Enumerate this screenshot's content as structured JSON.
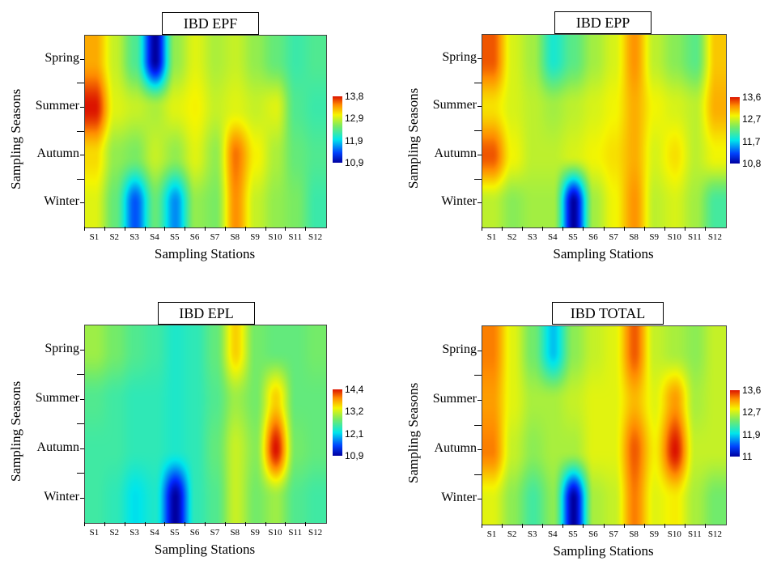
{
  "chart_data": [
    {
      "type": "heatmap",
      "title": "IBD EPF",
      "xlabel": "Sampling Stations",
      "ylabel": "Sampling Seasons",
      "categories": [
        "S1",
        "S2",
        "S3",
        "S4",
        "S5",
        "S6",
        "S7",
        "S8",
        "S9",
        "S10",
        "S11",
        "S12"
      ],
      "rows": [
        "Spring",
        "Summer",
        "Autumn",
        "Winter"
      ],
      "colorbar_ticks": [
        "13,8",
        "12,9",
        "11,9",
        "10,9"
      ],
      "zlim": [
        10.9,
        13.8
      ],
      "values": [
        [
          13.3,
          12.8,
          12.3,
          10.9,
          12.6,
          12.9,
          12.7,
          12.8,
          12.6,
          12.4,
          12.2,
          12.3
        ],
        [
          13.8,
          12.9,
          12.8,
          12.7,
          12.9,
          13.0,
          12.8,
          12.9,
          12.8,
          12.9,
          12.3,
          12.2
        ],
        [
          13.1,
          12.6,
          12.5,
          12.8,
          12.6,
          12.9,
          12.6,
          13.5,
          13.0,
          12.7,
          12.4,
          12.3
        ],
        [
          12.9,
          12.4,
          11.4,
          12.4,
          11.6,
          12.6,
          12.5,
          13.4,
          12.8,
          12.6,
          12.5,
          12.2
        ]
      ]
    },
    {
      "type": "heatmap",
      "title": "IBD EPP",
      "xlabel": "Sampling Stations",
      "ylabel": "Sampling Seasons",
      "categories": [
        "S1",
        "S2",
        "S3",
        "S4",
        "S5",
        "S6",
        "S7",
        "S8",
        "S9",
        "S10",
        "S11",
        "S12"
      ],
      "rows": [
        "Spring",
        "Summer",
        "Autumn",
        "Winter"
      ],
      "colorbar_ticks": [
        "13,6",
        "12,7",
        "11,7",
        "10,8"
      ],
      "zlim": [
        10.8,
        13.6
      ],
      "values": [
        [
          13.4,
          12.7,
          12.5,
          11.9,
          12.2,
          12.5,
          12.7,
          13.2,
          12.6,
          12.4,
          12.2,
          13.0
        ],
        [
          12.9,
          12.7,
          12.6,
          12.5,
          12.6,
          12.7,
          12.8,
          13.1,
          12.8,
          12.7,
          12.6,
          13.1
        ],
        [
          13.4,
          12.8,
          12.6,
          12.6,
          12.7,
          12.8,
          12.9,
          13.1,
          12.7,
          12.9,
          12.6,
          12.8
        ],
        [
          12.6,
          12.4,
          12.5,
          12.5,
          10.8,
          12.5,
          12.8,
          13.2,
          12.6,
          12.7,
          12.5,
          12.1
        ]
      ]
    },
    {
      "type": "heatmap",
      "title": "IBD EPL",
      "xlabel": "Sampling Stations",
      "ylabel": "Sampling Seasons",
      "categories": [
        "S1",
        "S2",
        "S3",
        "S4",
        "S5",
        "S6",
        "S7",
        "S8",
        "S9",
        "S10",
        "S11",
        "S12"
      ],
      "rows": [
        "Spring",
        "Summer",
        "Autumn",
        "Winter"
      ],
      "colorbar_ticks": [
        "14,4",
        "13,2",
        "12,1",
        "10,9"
      ],
      "zlim": [
        10.9,
        14.4
      ],
      "values": [
        [
          13.0,
          12.8,
          12.6,
          12.5,
          12.3,
          12.4,
          12.7,
          13.6,
          12.8,
          12.7,
          12.7,
          12.8
        ],
        [
          12.6,
          12.5,
          12.4,
          12.4,
          12.3,
          12.4,
          12.6,
          13.0,
          12.8,
          13.6,
          12.7,
          12.7
        ],
        [
          12.5,
          12.5,
          12.4,
          12.4,
          12.3,
          12.4,
          12.7,
          13.2,
          12.9,
          14.4,
          12.8,
          12.7
        ],
        [
          12.5,
          12.4,
          12.1,
          12.3,
          10.9,
          12.4,
          12.6,
          13.2,
          12.8,
          13.0,
          12.6,
          12.5
        ]
      ]
    },
    {
      "type": "heatmap",
      "title": "IBD TOTAL",
      "xlabel": "Sampling Stations",
      "ylabel": "Sampling Seasons",
      "categories": [
        "S1",
        "S2",
        "S3",
        "S4",
        "S5",
        "S6",
        "S7",
        "S8",
        "S9",
        "S10",
        "S11",
        "S12"
      ],
      "rows": [
        "Spring",
        "Summer",
        "Autumn",
        "Winter"
      ],
      "colorbar_ticks": [
        "13,6",
        "12,7",
        "11,9",
        "11"
      ],
      "zlim": [
        11.0,
        13.6
      ],
      "values": [
        [
          13.3,
          12.8,
          12.4,
          11.8,
          12.5,
          12.7,
          12.8,
          13.4,
          12.7,
          12.6,
          12.5,
          12.7
        ],
        [
          13.2,
          12.8,
          12.6,
          12.6,
          12.7,
          12.8,
          12.8,
          13.1,
          12.8,
          13.2,
          12.6,
          12.7
        ],
        [
          13.3,
          12.7,
          12.5,
          12.6,
          12.6,
          12.8,
          12.8,
          13.4,
          12.9,
          13.6,
          12.7,
          12.7
        ],
        [
          12.8,
          12.5,
          12.2,
          12.5,
          11.0,
          12.6,
          12.7,
          13.3,
          12.8,
          12.9,
          12.6,
          12.4
        ]
      ]
    }
  ]
}
